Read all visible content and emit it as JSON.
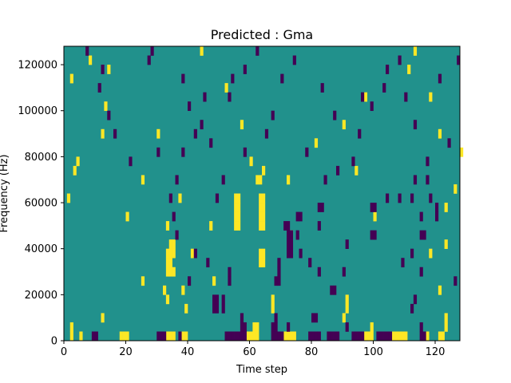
{
  "chart_data": {
    "type": "heatmap",
    "title": "Predicted : Gma",
    "xlabel": "Time step",
    "ylabel": "Frequency (Hz)",
    "xlim": [
      0,
      128
    ],
    "ylim": [
      0,
      128000
    ],
    "x_ticks": [
      0,
      20,
      40,
      60,
      80,
      100,
      120
    ],
    "x_tick_labels": [
      "0",
      "20",
      "40",
      "60",
      "80",
      "100",
      "120"
    ],
    "y_ticks": [
      0,
      20000,
      40000,
      60000,
      80000,
      100000,
      120000
    ],
    "y_tick_labels": [
      "0",
      "20000",
      "40000",
      "60000",
      "80000",
      "100000",
      "120000"
    ],
    "n_freq_bins": 32,
    "bin_height_hz": 4000,
    "colors": {
      "background": "#21918c",
      "high": "#fde725",
      "low": "#440154",
      "axis": "#000000"
    },
    "cells_high": [
      [
        2,
        1
      ],
      [
        2,
        0
      ],
      [
        5,
        0
      ],
      [
        18,
        0
      ],
      [
        19,
        0
      ],
      [
        20,
        0
      ],
      [
        33,
        0
      ],
      [
        34,
        0
      ],
      [
        35,
        0
      ],
      [
        38,
        0
      ],
      [
        39,
        0
      ],
      [
        59,
        0
      ],
      [
        60,
        0
      ],
      [
        61,
        0
      ],
      [
        62,
        0
      ],
      [
        71,
        0
      ],
      [
        72,
        0
      ],
      [
        73,
        0
      ],
      [
        74,
        0
      ],
      [
        97,
        0
      ],
      [
        98,
        0
      ],
      [
        99,
        0
      ],
      [
        106,
        0
      ],
      [
        107,
        0
      ],
      [
        108,
        0
      ],
      [
        109,
        0
      ],
      [
        110,
        0
      ],
      [
        117,
        0
      ],
      [
        121,
        0
      ],
      [
        122,
        0
      ],
      [
        61,
        1
      ],
      [
        62,
        1
      ],
      [
        99,
        1
      ],
      [
        123,
        1
      ],
      [
        123,
        2
      ],
      [
        33,
        7
      ],
      [
        34,
        7
      ],
      [
        35,
        7
      ],
      [
        33,
        8
      ],
      [
        34,
        8
      ],
      [
        33,
        9
      ],
      [
        34,
        9
      ],
      [
        35,
        9
      ],
      [
        34,
        10
      ],
      [
        35,
        10
      ],
      [
        33,
        12
      ],
      [
        55,
        12
      ],
      [
        56,
        12
      ],
      [
        55,
        13
      ],
      [
        56,
        13
      ],
      [
        55,
        14
      ],
      [
        56,
        14
      ],
      [
        55,
        15
      ],
      [
        56,
        15
      ],
      [
        63,
        8
      ],
      [
        64,
        8
      ],
      [
        63,
        9
      ],
      [
        64,
        9
      ],
      [
        63,
        12
      ],
      [
        64,
        12
      ],
      [
        63,
        13
      ],
      [
        64,
        13
      ],
      [
        63,
        14
      ],
      [
        64,
        14
      ],
      [
        63,
        15
      ],
      [
        64,
        15
      ],
      [
        62,
        17
      ],
      [
        63,
        17
      ],
      [
        64,
        18
      ],
      [
        33,
        4
      ],
      [
        32,
        5
      ],
      [
        38,
        5
      ],
      [
        67,
        3
      ],
      [
        67,
        4
      ],
      [
        90,
        2
      ],
      [
        91,
        4
      ],
      [
        121,
        5
      ],
      [
        118,
        9
      ],
      [
        123,
        10
      ],
      [
        12,
        2
      ],
      [
        25,
        6
      ],
      [
        39,
        3
      ],
      [
        1,
        15
      ],
      [
        3,
        18
      ],
      [
        4,
        19
      ],
      [
        20,
        13
      ],
      [
        37,
        15
      ],
      [
        25,
        17
      ],
      [
        30,
        22
      ],
      [
        12,
        22
      ],
      [
        13,
        25
      ],
      [
        2,
        28
      ],
      [
        14,
        29
      ],
      [
        8,
        30
      ],
      [
        44,
        31
      ],
      [
        52,
        27
      ],
      [
        57,
        23
      ],
      [
        60,
        19
      ],
      [
        73,
        11
      ],
      [
        72,
        17
      ],
      [
        81,
        21
      ],
      [
        90,
        23
      ],
      [
        97,
        26
      ],
      [
        111,
        29
      ],
      [
        113,
        31
      ],
      [
        118,
        26
      ],
      [
        121,
        22
      ],
      [
        126,
        16
      ],
      [
        123,
        14
      ],
      [
        128,
        20
      ],
      [
        94,
        18
      ],
      [
        47,
        12
      ],
      [
        41,
        9
      ],
      [
        48,
        6
      ],
      [
        100,
        13
      ],
      [
        91,
        3
      ]
    ],
    "cells_low": [
      [
        9,
        0
      ],
      [
        10,
        0
      ],
      [
        30,
        0
      ],
      [
        31,
        0
      ],
      [
        32,
        0
      ],
      [
        37,
        0
      ],
      [
        52,
        0
      ],
      [
        53,
        0
      ],
      [
        54,
        0
      ],
      [
        55,
        0
      ],
      [
        56,
        0
      ],
      [
        57,
        0
      ],
      [
        58,
        0
      ],
      [
        67,
        0
      ],
      [
        68,
        0
      ],
      [
        69,
        0
      ],
      [
        70,
        0
      ],
      [
        79,
        0
      ],
      [
        80,
        0
      ],
      [
        81,
        0
      ],
      [
        82,
        0
      ],
      [
        85,
        0
      ],
      [
        86,
        0
      ],
      [
        87,
        0
      ],
      [
        88,
        0
      ],
      [
        93,
        0
      ],
      [
        94,
        0
      ],
      [
        95,
        0
      ],
      [
        96,
        0
      ],
      [
        101,
        0
      ],
      [
        102,
        0
      ],
      [
        103,
        0
      ],
      [
        104,
        0
      ],
      [
        105,
        0
      ],
      [
        115,
        0
      ],
      [
        116,
        0
      ],
      [
        57,
        1
      ],
      [
        58,
        1
      ],
      [
        67,
        1
      ],
      [
        68,
        1
      ],
      [
        72,
        1
      ],
      [
        91,
        1
      ],
      [
        115,
        1
      ],
      [
        57,
        2
      ],
      [
        68,
        2
      ],
      [
        80,
        2
      ],
      [
        81,
        2
      ],
      [
        49,
        3
      ],
      [
        48,
        3
      ],
      [
        51,
        3
      ],
      [
        48,
        4
      ],
      [
        49,
        4
      ],
      [
        51,
        4
      ],
      [
        68,
        6
      ],
      [
        69,
        6
      ],
      [
        69,
        7
      ],
      [
        69,
        8
      ],
      [
        72,
        9
      ],
      [
        73,
        9
      ],
      [
        72,
        10
      ],
      [
        73,
        10
      ],
      [
        73,
        11
      ],
      [
        72,
        11
      ],
      [
        99,
        11
      ],
      [
        100,
        11
      ],
      [
        71,
        12
      ],
      [
        72,
        12
      ],
      [
        75,
        13
      ],
      [
        76,
        13
      ],
      [
        82,
        14
      ],
      [
        83,
        14
      ],
      [
        82,
        12
      ],
      [
        99,
        14
      ],
      [
        100,
        14
      ],
      [
        115,
        11
      ],
      [
        116,
        11
      ],
      [
        104,
        15
      ],
      [
        108,
        15
      ],
      [
        112,
        15
      ],
      [
        118,
        15
      ],
      [
        113,
        17
      ],
      [
        117,
        17
      ],
      [
        120,
        14
      ],
      [
        120,
        13
      ],
      [
        115,
        13
      ],
      [
        109,
        8
      ],
      [
        112,
        9
      ],
      [
        115,
        7
      ],
      [
        126,
        6
      ],
      [
        112,
        3
      ],
      [
        113,
        4
      ],
      [
        86,
        5
      ],
      [
        87,
        5
      ],
      [
        90,
        7
      ],
      [
        91,
        10
      ],
      [
        82,
        7
      ],
      [
        79,
        8
      ],
      [
        76,
        9
      ],
      [
        75,
        11
      ],
      [
        53,
        6
      ],
      [
        53,
        7
      ],
      [
        46,
        8
      ],
      [
        42,
        9
      ],
      [
        40,
        6
      ],
      [
        36,
        11
      ],
      [
        35,
        13
      ],
      [
        34,
        15
      ],
      [
        36,
        17
      ],
      [
        30,
        20
      ],
      [
        21,
        19
      ],
      [
        16,
        22
      ],
      [
        14,
        24
      ],
      [
        11,
        27
      ],
      [
        12,
        29
      ],
      [
        7,
        31
      ],
      [
        27,
        30
      ],
      [
        28,
        31
      ],
      [
        38,
        28
      ],
      [
        40,
        25
      ],
      [
        44,
        23
      ],
      [
        47,
        21
      ],
      [
        53,
        26
      ],
      [
        54,
        28
      ],
      [
        51,
        17
      ],
      [
        49,
        15
      ],
      [
        58,
        20
      ],
      [
        65,
        22
      ],
      [
        67,
        24
      ],
      [
        78,
        20
      ],
      [
        84,
        17
      ],
      [
        88,
        18
      ],
      [
        95,
        22
      ],
      [
        99,
        25
      ],
      [
        103,
        27
      ],
      [
        110,
        26
      ],
      [
        113,
        23
      ],
      [
        117,
        19
      ],
      [
        124,
        21
      ],
      [
        127,
        30
      ],
      [
        121,
        28
      ],
      [
        108,
        30
      ],
      [
        104,
        29
      ],
      [
        96,
        26
      ],
      [
        93,
        19
      ],
      [
        87,
        24
      ],
      [
        83,
        27
      ],
      [
        74,
        30
      ],
      [
        70,
        28
      ],
      [
        62,
        31
      ],
      [
        58,
        29
      ],
      [
        45,
        26
      ],
      [
        42,
        22
      ],
      [
        38,
        20
      ]
    ]
  }
}
